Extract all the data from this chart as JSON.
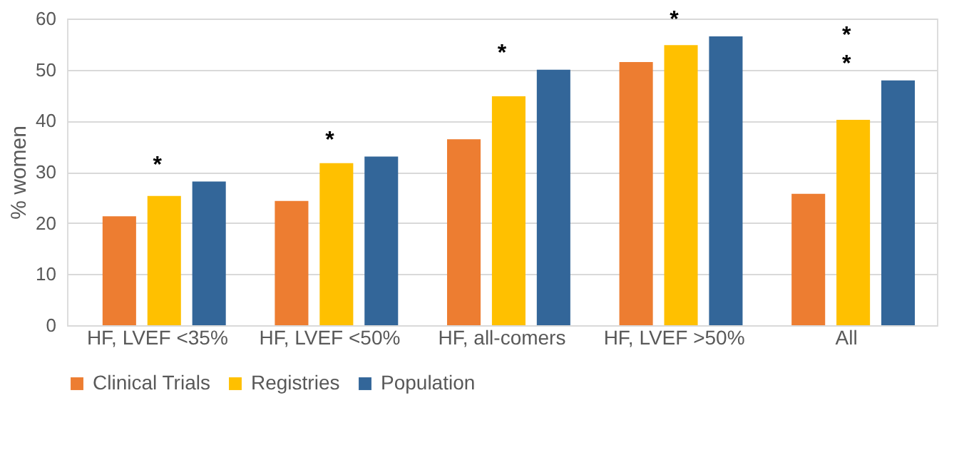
{
  "chart_data": {
    "type": "bar",
    "ylabel": "% women",
    "categories": [
      "HF, LVEF <35%",
      "HF, LVEF <50%",
      "HF, all-comers",
      "HF, LVEF >50%",
      "All"
    ],
    "series": [
      {
        "name": "Clinical Trials",
        "color": "#ed7d31",
        "values": [
          21.3,
          24.3,
          36.4,
          51.5,
          25.7
        ]
      },
      {
        "name": "Registries",
        "color": "#ffc000",
        "values": [
          25.3,
          31.7,
          44.8,
          54.8,
          40.2
        ]
      },
      {
        "name": "Population",
        "color": "#336699",
        "values": [
          28.1,
          33.0,
          50.0,
          56.5,
          47.9
        ]
      }
    ],
    "ylim": [
      0,
      60
    ],
    "yticks": [
      0,
      10,
      20,
      30,
      40,
      50,
      60
    ],
    "grid": "y",
    "legend": "bottom",
    "annotations": [
      "*",
      "*",
      "*",
      "*",
      "*",
      "*"
    ]
  }
}
